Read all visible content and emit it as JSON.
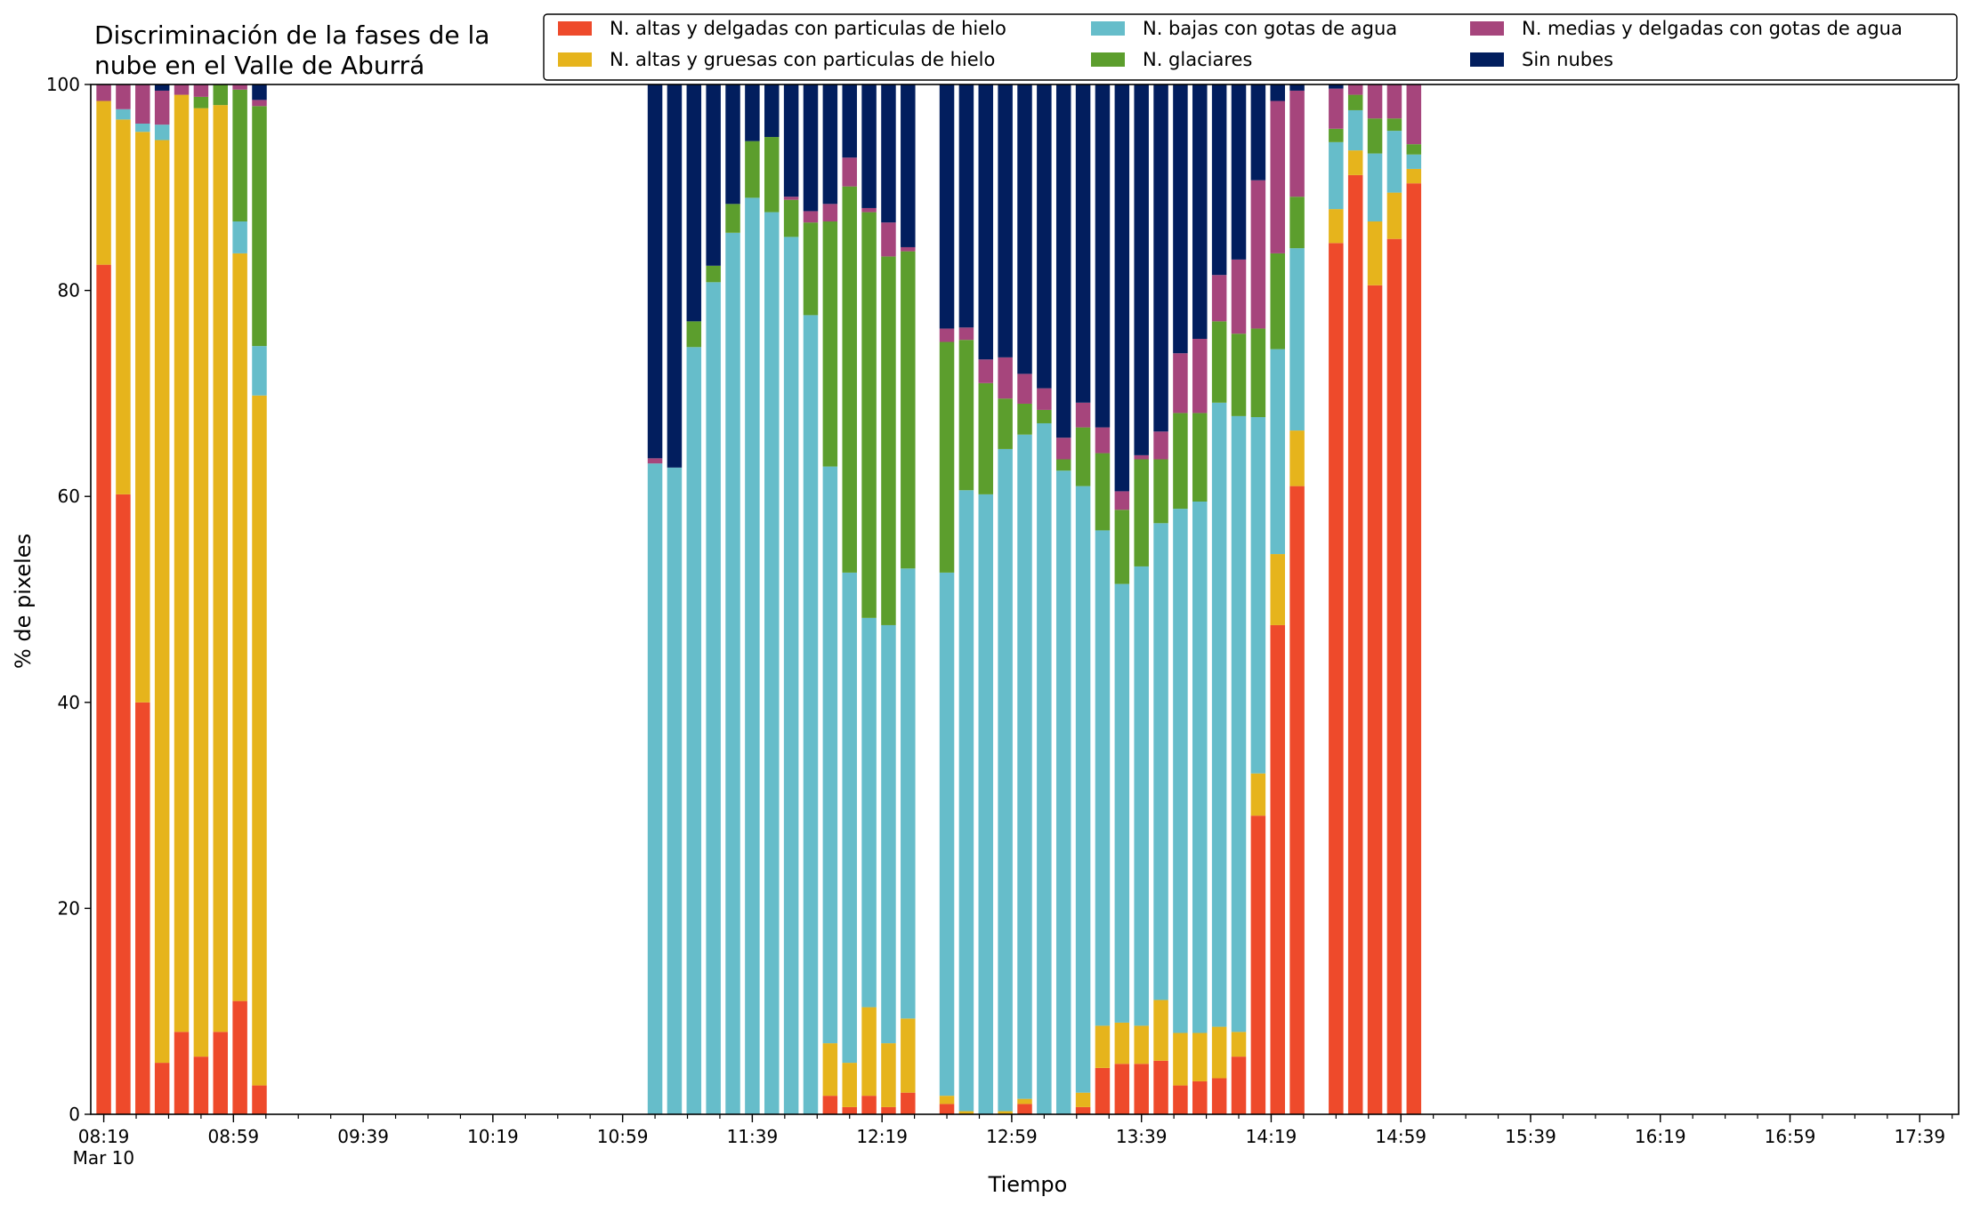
{
  "chart_data": {
    "type": "bar",
    "stacked": true,
    "title": "Discriminación de la fases de la\nnube en el Valle de Aburrá",
    "xlabel": "Tiempo",
    "ylabel": "% de pixeles",
    "ylim": [
      0,
      100
    ],
    "yticks": [
      0,
      20,
      40,
      60,
      80,
      100
    ],
    "xticks": [
      {
        "t": "08:19",
        "label": "08:19\nMar 10"
      },
      {
        "t": "08:59",
        "label": "08:59"
      },
      {
        "t": "09:39",
        "label": "09:39"
      },
      {
        "t": "10:19",
        "label": "10:19"
      },
      {
        "t": "10:59",
        "label": "10:59"
      },
      {
        "t": "11:39",
        "label": "11:39"
      },
      {
        "t": "12:19",
        "label": "12:19"
      },
      {
        "t": "12:59",
        "label": "12:59"
      },
      {
        "t": "13:39",
        "label": "13:39"
      },
      {
        "t": "14:19",
        "label": "14:19"
      },
      {
        "t": "14:59",
        "label": "14:59"
      },
      {
        "t": "15:39",
        "label": "15:39"
      },
      {
        "t": "16:19",
        "label": "16:19"
      },
      {
        "t": "16:59",
        "label": "16:59"
      },
      {
        "t": "17:39",
        "label": "17:39"
      }
    ],
    "x_range": [
      "08:15",
      "17:51"
    ],
    "minor_tick_minutes": 10,
    "legend_position": "top-right",
    "legend_columns": 3,
    "grid": false,
    "series": [
      {
        "name": "N. altas y delgadas con particulas de hielo",
        "color": "#ee4a2b"
      },
      {
        "name": "N. altas y gruesas con particulas de hielo",
        "color": "#e6b41c"
      },
      {
        "name": "N. bajas con gotas de agua",
        "color": "#66bdca"
      },
      {
        "name": "N. glaciares",
        "color": "#5c9e2d"
      },
      {
        "name": "N. medias y delgadas con gotas de agua",
        "color": "#a6457c"
      },
      {
        "name": "Sin nubes",
        "color": "#021e5e"
      }
    ],
    "bars": [
      {
        "t": "08:19",
        "values": [
          82.5,
          15.9,
          0.0,
          0.0,
          1.6,
          0.0
        ]
      },
      {
        "t": "08:25",
        "values": [
          60.2,
          36.4,
          1.0,
          0.0,
          2.4,
          0.0
        ]
      },
      {
        "t": "08:31",
        "values": [
          40.0,
          55.4,
          0.8,
          0.0,
          3.8,
          0.0
        ]
      },
      {
        "t": "08:37",
        "values": [
          5.0,
          89.6,
          1.5,
          0.0,
          3.3,
          0.6
        ]
      },
      {
        "t": "08:43",
        "values": [
          8.0,
          91.0,
          0.0,
          0.0,
          1.0,
          0.0
        ]
      },
      {
        "t": "08:49",
        "values": [
          5.6,
          92.1,
          0.0,
          1.1,
          1.2,
          0.0
        ]
      },
      {
        "t": "08:55",
        "values": [
          8.0,
          90.0,
          0.0,
          2.0,
          0.0,
          0.0
        ]
      },
      {
        "t": "09:01",
        "values": [
          11.0,
          72.6,
          3.1,
          12.8,
          0.5,
          0.0
        ]
      },
      {
        "t": "09:07",
        "values": [
          2.8,
          67.0,
          4.8,
          23.3,
          0.6,
          1.5
        ]
      },
      {
        "t": "11:09",
        "values": [
          0.0,
          0.0,
          63.2,
          0.0,
          0.5,
          36.3
        ]
      },
      {
        "t": "11:15",
        "values": [
          0.0,
          0.0,
          62.8,
          0.0,
          0.0,
          37.2
        ]
      },
      {
        "t": "11:21",
        "values": [
          0.0,
          0.0,
          74.5,
          2.5,
          0.0,
          23.0
        ]
      },
      {
        "t": "11:27",
        "values": [
          0.0,
          0.0,
          80.8,
          1.6,
          0.0,
          17.6
        ]
      },
      {
        "t": "11:33",
        "values": [
          0.0,
          0.0,
          85.6,
          2.8,
          0.0,
          11.6
        ]
      },
      {
        "t": "11:39",
        "values": [
          0.0,
          0.0,
          89.0,
          5.5,
          0.0,
          5.5
        ]
      },
      {
        "t": "11:45",
        "values": [
          0.0,
          0.0,
          87.6,
          7.3,
          0.0,
          5.1
        ]
      },
      {
        "t": "11:51",
        "values": [
          0.0,
          0.0,
          85.2,
          3.6,
          0.3,
          10.9
        ]
      },
      {
        "t": "11:57",
        "values": [
          0.0,
          0.0,
          77.6,
          9.0,
          1.1,
          12.3
        ]
      },
      {
        "t": "12:03",
        "values": [
          1.8,
          5.1,
          56.0,
          23.8,
          1.7,
          11.6
        ]
      },
      {
        "t": "12:09",
        "values": [
          0.7,
          4.3,
          47.6,
          37.5,
          2.8,
          7.1
        ]
      },
      {
        "t": "12:15",
        "values": [
          1.8,
          8.6,
          37.8,
          39.4,
          0.4,
          12.0
        ]
      },
      {
        "t": "12:21",
        "values": [
          0.7,
          6.2,
          40.6,
          35.8,
          3.3,
          13.4
        ]
      },
      {
        "t": "12:27",
        "values": [
          2.1,
          7.2,
          43.7,
          30.8,
          0.4,
          15.8
        ]
      },
      {
        "t": "12:39",
        "values": [
          1.0,
          0.8,
          50.8,
          22.4,
          1.3,
          23.7
        ]
      },
      {
        "t": "12:45",
        "values": [
          0.0,
          0.3,
          60.3,
          14.6,
          1.2,
          23.6
        ]
      },
      {
        "t": "12:51",
        "values": [
          0.0,
          0.0,
          60.2,
          10.8,
          2.3,
          26.7
        ]
      },
      {
        "t": "12:57",
        "values": [
          0.0,
          0.3,
          64.3,
          4.9,
          4.0,
          26.5
        ]
      },
      {
        "t": "13:03",
        "values": [
          1.0,
          0.5,
          64.5,
          3.0,
          2.9,
          28.1
        ]
      },
      {
        "t": "13:09",
        "values": [
          0.0,
          0.0,
          67.1,
          1.3,
          2.1,
          29.5
        ]
      },
      {
        "t": "13:15",
        "values": [
          0.0,
          0.0,
          62.5,
          1.1,
          2.1,
          34.3
        ]
      },
      {
        "t": "13:21",
        "values": [
          0.7,
          1.4,
          58.9,
          5.7,
          2.4,
          30.9
        ]
      },
      {
        "t": "13:27",
        "values": [
          4.5,
          4.1,
          48.1,
          7.5,
          2.5,
          33.3
        ]
      },
      {
        "t": "13:33",
        "values": [
          4.9,
          4.0,
          42.6,
          7.2,
          1.8,
          39.5
        ]
      },
      {
        "t": "13:39",
        "values": [
          4.9,
          3.7,
          44.6,
          10.4,
          0.4,
          36.0
        ]
      },
      {
        "t": "13:45",
        "values": [
          5.2,
          5.9,
          46.3,
          6.2,
          2.7,
          33.7
        ]
      },
      {
        "t": "13:51",
        "values": [
          2.8,
          5.1,
          50.9,
          9.3,
          5.8,
          26.1
        ]
      },
      {
        "t": "13:57",
        "values": [
          3.2,
          4.7,
          51.6,
          8.6,
          7.2,
          24.7
        ]
      },
      {
        "t": "14:03",
        "values": [
          3.5,
          5.0,
          60.6,
          7.9,
          4.5,
          18.5
        ]
      },
      {
        "t": "14:09",
        "values": [
          5.6,
          2.4,
          59.8,
          8.0,
          7.2,
          17.0
        ]
      },
      {
        "t": "14:15",
        "values": [
          29.0,
          4.1,
          34.6,
          8.6,
          14.4,
          9.3
        ]
      },
      {
        "t": "14:21",
        "values": [
          47.5,
          6.9,
          19.9,
          9.3,
          14.8,
          1.6
        ]
      },
      {
        "t": "14:27",
        "values": [
          61.0,
          5.4,
          17.7,
          5.0,
          10.3,
          0.6
        ]
      },
      {
        "t": "14:39",
        "values": [
          84.6,
          3.3,
          6.5,
          1.3,
          3.9,
          0.4
        ]
      },
      {
        "t": "14:45",
        "values": [
          91.2,
          2.4,
          3.9,
          1.5,
          1.0,
          0.0
        ]
      },
      {
        "t": "14:51",
        "values": [
          80.5,
          6.2,
          6.6,
          3.4,
          3.3,
          0.0
        ]
      },
      {
        "t": "14:57",
        "values": [
          85.0,
          4.5,
          6.0,
          1.2,
          3.3,
          0.0
        ]
      },
      {
        "t": "15:03",
        "values": [
          90.4,
          1.4,
          1.4,
          1.0,
          5.8,
          0.0
        ]
      }
    ]
  }
}
